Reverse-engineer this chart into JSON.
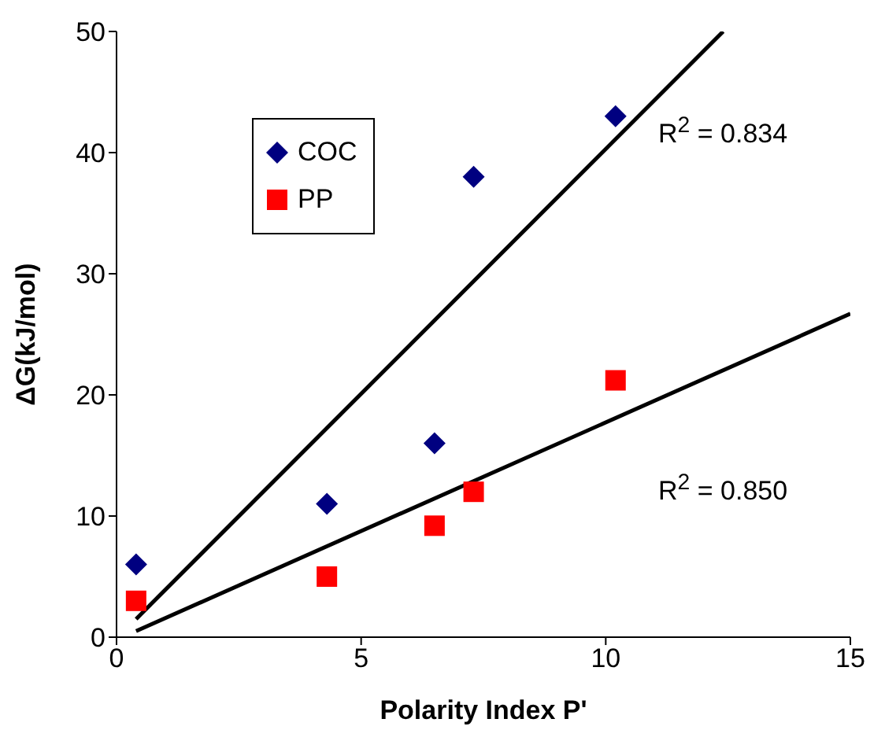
{
  "chart_data": {
    "type": "scatter",
    "xlabel": "Polarity Index P'",
    "ylabel": "ΔG(kJ/mol)",
    "xlim": [
      0,
      15
    ],
    "xticks": [
      0,
      5,
      10,
      15
    ],
    "ylim": [
      0,
      50
    ],
    "yticks": [
      0,
      10,
      20,
      30,
      40,
      50
    ],
    "grid": false,
    "legend": "top left",
    "series": [
      {
        "name": "COC",
        "marker": "diamond",
        "color": "#000080",
        "x": [
          0.4,
          4.3,
          6.5,
          7.3,
          10.2
        ],
        "values": [
          6,
          11,
          16,
          38,
          43
        ]
      },
      {
        "name": "PP",
        "marker": "square",
        "color": "#ff0000",
        "x": [
          0.4,
          4.3,
          6.5,
          7.3,
          10.2
        ],
        "values": [
          3,
          5,
          9.2,
          12,
          21.2
        ]
      },
      {
        "type": "line",
        "marker": "none",
        "color": "#000000",
        "x": [
          0.4,
          12.4
        ],
        "values": [
          1.5,
          50
        ]
      },
      {
        "type": "line",
        "marker": "none",
        "color": "#000000",
        "x": [
          0.4,
          15
        ],
        "values": [
          0.5,
          26.7
        ]
      }
    ],
    "annotations": [
      "R$^{2}$ = 0.834",
      "R$^{2}$ = 0.850"
    ]
  }
}
